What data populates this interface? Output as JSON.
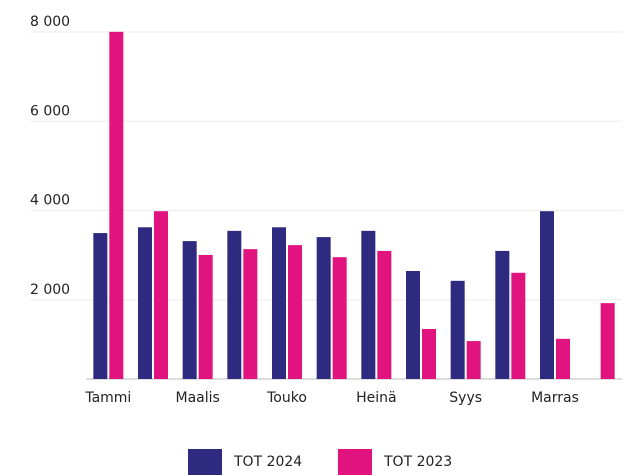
{
  "chart_data": {
    "type": "bar",
    "categories": [
      "Tammi",
      null,
      "Maalis",
      null,
      "Touko",
      null,
      "Heinä",
      null,
      "Syys",
      null,
      "Marras",
      null
    ],
    "series": [
      {
        "name": "TOT 2024",
        "color": "#2e2a80",
        "values": [
          3270,
          3400,
          3090,
          3320,
          3400,
          3180,
          3320,
          2420,
          2200,
          2870,
          3760,
          null
        ]
      },
      {
        "name": "TOT 2023",
        "color": "#e0137f",
        "values": [
          7780,
          3760,
          2780,
          2910,
          3000,
          2730,
          2870,
          1120,
          850,
          2380,
          900,
          1700
        ]
      }
    ],
    "ylim": [
      0,
      8000
    ],
    "yticks": [
      {
        "value": 2000,
        "label": "2 000"
      },
      {
        "value": 4000,
        "label": "4 000"
      },
      {
        "value": 6000,
        "label": "6 000"
      },
      {
        "value": 8000,
        "label": "8 000"
      }
    ],
    "grid": true,
    "legend": "bottom"
  }
}
